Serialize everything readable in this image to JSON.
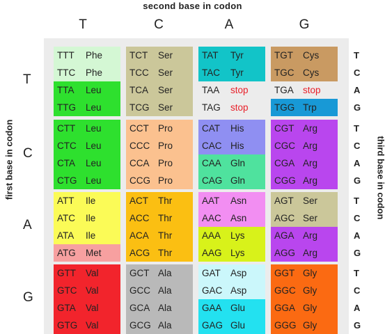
{
  "titles": {
    "top": "second base in codon",
    "left": "first base in codon",
    "right": "third base in codon"
  },
  "second_bases": [
    "T",
    "C",
    "A",
    "G"
  ],
  "first_bases": [
    "T",
    "C",
    "A",
    "G"
  ],
  "third_bases": [
    "T",
    "C",
    "A",
    "G",
    "T",
    "C",
    "A",
    "G",
    "T",
    "C",
    "A",
    "G",
    "T",
    "C",
    "A",
    "G"
  ],
  "table": [
    [
      [
        {
          "codon": "TTT",
          "aa": "Phe",
          "color": "#d4f7d4"
        },
        {
          "codon": "TTC",
          "aa": "Phe",
          "color": "#d4f7d4"
        },
        {
          "codon": "TTA",
          "aa": "Leu",
          "color": "#2ee02e"
        },
        {
          "codon": "TTG",
          "aa": "Leu",
          "color": "#2ee02e"
        }
      ],
      [
        {
          "codon": "TCT",
          "aa": "Ser",
          "color": "#cbc79a"
        },
        {
          "codon": "TCC",
          "aa": "Ser",
          "color": "#cbc79a"
        },
        {
          "codon": "TCA",
          "aa": "Ser",
          "color": "#cbc79a"
        },
        {
          "codon": "TCG",
          "aa": "Ser",
          "color": "#cbc79a"
        }
      ],
      [
        {
          "codon": "TAT",
          "aa": "Tyr",
          "color": "#12c4c8"
        },
        {
          "codon": "TAC",
          "aa": "Tyr",
          "color": "#12c4c8"
        },
        {
          "codon": "TAA",
          "aa": "stop",
          "color": "#ececec"
        },
        {
          "codon": "TAG",
          "aa": "stop",
          "color": "#ececec"
        }
      ],
      [
        {
          "codon": "TGT",
          "aa": "Cys",
          "color": "#c99a62"
        },
        {
          "codon": "TGC",
          "aa": "Cys",
          "color": "#c99a62"
        },
        {
          "codon": "TGA",
          "aa": "stop",
          "color": "#ececec"
        },
        {
          "codon": "TGG",
          "aa": "Trp",
          "color": "#1899d6"
        }
      ]
    ],
    [
      [
        {
          "codon": "CTT",
          "aa": "Leu",
          "color": "#2ee02e"
        },
        {
          "codon": "CTC",
          "aa": "Leu",
          "color": "#2ee02e"
        },
        {
          "codon": "CTA",
          "aa": "Leu",
          "color": "#2ee02e"
        },
        {
          "codon": "CTG",
          "aa": "Leu",
          "color": "#2ee02e"
        }
      ],
      [
        {
          "codon": "CCT",
          "aa": "Pro",
          "color": "#fbc18f"
        },
        {
          "codon": "CCC",
          "aa": "Pro",
          "color": "#fbc18f"
        },
        {
          "codon": "CCA",
          "aa": "Pro",
          "color": "#fbc18f"
        },
        {
          "codon": "CCG",
          "aa": "Pro",
          "color": "#fbc18f"
        }
      ],
      [
        {
          "codon": "CAT",
          "aa": "His",
          "color": "#8f8ff2"
        },
        {
          "codon": "CAC",
          "aa": "His",
          "color": "#8f8ff2"
        },
        {
          "codon": "CAA",
          "aa": "Gln",
          "color": "#4fe29e"
        },
        {
          "codon": "CAG",
          "aa": "Gln",
          "color": "#4fe29e"
        }
      ],
      [
        {
          "codon": "CGT",
          "aa": "Arg",
          "color": "#b946ee"
        },
        {
          "codon": "CGC",
          "aa": "Arg",
          "color": "#b946ee"
        },
        {
          "codon": "CGA",
          "aa": "Arg",
          "color": "#b946ee"
        },
        {
          "codon": "CGG",
          "aa": "Arg",
          "color": "#b946ee"
        }
      ]
    ],
    [
      [
        {
          "codon": "ATT",
          "aa": "Ile",
          "color": "#fbfb57"
        },
        {
          "codon": "ATC",
          "aa": "Ile",
          "color": "#fbfb57"
        },
        {
          "codon": "ATA",
          "aa": "Ile",
          "color": "#fbfb57"
        },
        {
          "codon": "ATG",
          "aa": "Met",
          "color": "#f7a0a0"
        }
      ],
      [
        {
          "codon": "ACT",
          "aa": "Thr",
          "color": "#fbbf12"
        },
        {
          "codon": "ACC",
          "aa": "Thr",
          "color": "#fbbf12"
        },
        {
          "codon": "ACA",
          "aa": "Thr",
          "color": "#fbbf12"
        },
        {
          "codon": "ACG",
          "aa": "Thr",
          "color": "#fbbf12"
        }
      ],
      [
        {
          "codon": "AAT",
          "aa": "Asn",
          "color": "#f28ef2"
        },
        {
          "codon": "AAC",
          "aa": "Asn",
          "color": "#f28ef2"
        },
        {
          "codon": "AAA",
          "aa": "Lys",
          "color": "#d8f21a"
        },
        {
          "codon": "AAG",
          "aa": "Lys",
          "color": "#d8f21a"
        }
      ],
      [
        {
          "codon": "AGT",
          "aa": "Ser",
          "color": "#cbc79a"
        },
        {
          "codon": "AGC",
          "aa": "Ser",
          "color": "#cbc79a"
        },
        {
          "codon": "AGA",
          "aa": "Arg",
          "color": "#b946ee"
        },
        {
          "codon": "AGG",
          "aa": "Arg",
          "color": "#b946ee"
        }
      ]
    ],
    [
      [
        {
          "codon": "GTT",
          "aa": "Val",
          "color": "#f2242c"
        },
        {
          "codon": "GTC",
          "aa": "Val",
          "color": "#f2242c"
        },
        {
          "codon": "GTA",
          "aa": "Val",
          "color": "#f2242c"
        },
        {
          "codon": "GTG",
          "aa": "Val",
          "color": "#f2242c"
        }
      ],
      [
        {
          "codon": "GCT",
          "aa": "Ala",
          "color": "#b9b9b9"
        },
        {
          "codon": "GCC",
          "aa": "Ala",
          "color": "#b9b9b9"
        },
        {
          "codon": "GCA",
          "aa": "Ala",
          "color": "#b9b9b9"
        },
        {
          "codon": "GCG",
          "aa": "Ala",
          "color": "#b9b9b9"
        }
      ],
      [
        {
          "codon": "GAT",
          "aa": "Asp",
          "color": "#cbf7fb"
        },
        {
          "codon": "GAC",
          "aa": "Asp",
          "color": "#cbf7fb"
        },
        {
          "codon": "GAA",
          "aa": "Glu",
          "color": "#23e1f0"
        },
        {
          "codon": "GAG",
          "aa": "Glu",
          "color": "#23e1f0"
        }
      ],
      [
        {
          "codon": "GGT",
          "aa": "Gly",
          "color": "#fb6a12"
        },
        {
          "codon": "GGC",
          "aa": "Gly",
          "color": "#fb6a12"
        },
        {
          "codon": "GGA",
          "aa": "Gly",
          "color": "#fb6a12"
        },
        {
          "codon": "GGG",
          "aa": "Gly",
          "color": "#fb6a12"
        }
      ]
    ]
  ]
}
